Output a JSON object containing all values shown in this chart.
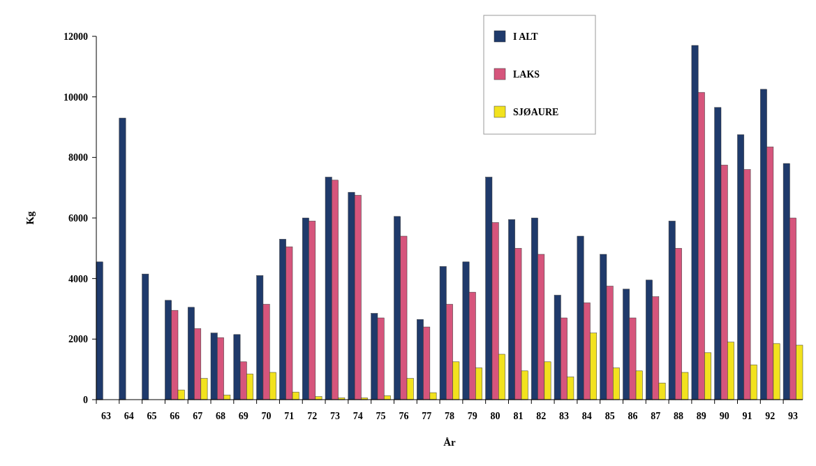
{
  "chart_data": {
    "type": "bar",
    "xlabel": "År",
    "ylabel": "Kg",
    "categories": [
      "63",
      "64",
      "65",
      "66",
      "67",
      "68",
      "69",
      "70",
      "71",
      "72",
      "73",
      "74",
      "75",
      "76",
      "77",
      "78",
      "79",
      "80",
      "81",
      "82",
      "83",
      "84",
      "85",
      "86",
      "87",
      "88",
      "89",
      "90",
      "91",
      "92",
      "93"
    ],
    "series": [
      {
        "name": "I ALT",
        "color": "#1f3a6b",
        "values": [
          4550,
          9300,
          4150,
          3280,
          3050,
          2200,
          2150,
          4100,
          5300,
          6000,
          7350,
          6850,
          2850,
          6050,
          2650,
          4400,
          4550,
          7350,
          5950,
          6000,
          3450,
          5400,
          4800,
          3650,
          3950,
          5900,
          11700,
          9650,
          8750,
          10250,
          7800
        ]
      },
      {
        "name": "LAKS",
        "color": "#d6557c",
        "values": [
          null,
          null,
          null,
          2950,
          2350,
          2050,
          1250,
          3150,
          5050,
          5900,
          7250,
          6750,
          2700,
          5400,
          2400,
          3150,
          3550,
          5850,
          5000,
          4800,
          2700,
          3200,
          3750,
          2700,
          3400,
          5000,
          10150,
          7750,
          7600,
          8350,
          6000
        ]
      },
      {
        "name": "SJØAURE",
        "color": "#f2e21e",
        "values": [
          null,
          null,
          null,
          320,
          700,
          150,
          850,
          900,
          250,
          100,
          60,
          60,
          130,
          700,
          230,
          1250,
          1050,
          1500,
          950,
          1250,
          750,
          2200,
          1050,
          950,
          550,
          900,
          1550,
          1900,
          1150,
          1850,
          1800
        ]
      }
    ],
    "ylim": [
      0,
      12000
    ],
    "yticks": [
      0,
      2000,
      4000,
      6000,
      8000,
      10000,
      12000
    ],
    "legend": "top right",
    "grid": false
  }
}
